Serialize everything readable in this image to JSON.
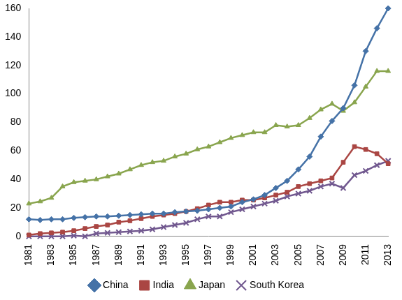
{
  "chart_data": {
    "type": "line",
    "categories": [
      "1981",
      null,
      "1983",
      null,
      "1985",
      null,
      "1987",
      null,
      "1989",
      null,
      "1991",
      null,
      "1993",
      null,
      "1995",
      null,
      "1997",
      null,
      "1999",
      null,
      "2001",
      null,
      "2003",
      null,
      "2005",
      null,
      "2007",
      null,
      "2009",
      null,
      "2011",
      null,
      "2013"
    ],
    "series": [
      {
        "name": "China",
        "color": "#4572a7",
        "marker": "diamond",
        "values": [
          12,
          11.5,
          12,
          12,
          13,
          13.5,
          14,
          14,
          14.5,
          15,
          15.5,
          16,
          16,
          17,
          17.5,
          18,
          19,
          20,
          21,
          24,
          26,
          29,
          34,
          39,
          47,
          56,
          70,
          81,
          90,
          106,
          130,
          146,
          160
        ]
      },
      {
        "name": "India",
        "color": "#aa4643",
        "marker": "square",
        "values": [
          1,
          2,
          2.5,
          3,
          4,
          5.5,
          7,
          8,
          10,
          11,
          12.5,
          14,
          15,
          16,
          17.5,
          19.5,
          22,
          24,
          24,
          25.5,
          25.5,
          27,
          29,
          31,
          35,
          37,
          39,
          41,
          52,
          63,
          61,
          58,
          51
        ]
      },
      {
        "name": "Japan",
        "color": "#89a54e",
        "marker": "triangle",
        "values": [
          23,
          24.5,
          27,
          35,
          38,
          39,
          40,
          42,
          44,
          47,
          50,
          52,
          53,
          56,
          58,
          61,
          63,
          66,
          69,
          71,
          73,
          73,
          78,
          77,
          78,
          83,
          89,
          93,
          88,
          94,
          105,
          116,
          116
        ]
      },
      {
        "name": "South Korea",
        "color": "#71588f",
        "marker": "x",
        "values": [
          0,
          0,
          0,
          0,
          0.5,
          0,
          2,
          2.5,
          3,
          3.5,
          4,
          5,
          6.5,
          8,
          9.5,
          12,
          14,
          14,
          17,
          19,
          21,
          23,
          25,
          28,
          30,
          32,
          35,
          37,
          34,
          43,
          46,
          50,
          53
        ]
      }
    ],
    "ylim": [
      0,
      160
    ],
    "yticks": [
      0,
      20,
      40,
      60,
      80,
      100,
      120,
      140,
      160
    ],
    "grid": false,
    "legend": "bottom"
  }
}
